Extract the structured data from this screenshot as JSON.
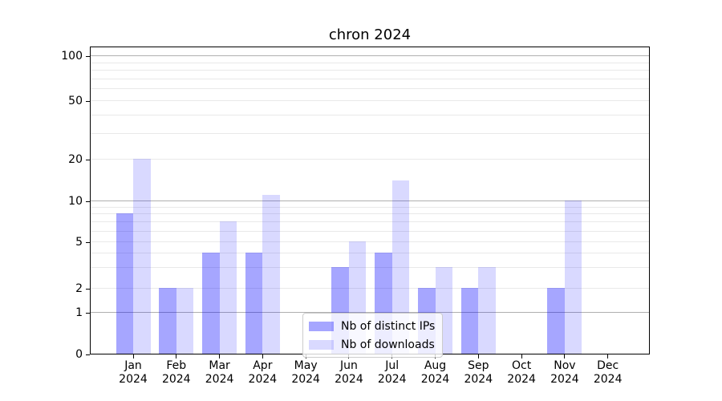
{
  "chart_data": {
    "type": "bar",
    "title": "chron 2024",
    "x_axis": {
      "months": [
        "Jan",
        "Feb",
        "Mar",
        "Apr",
        "May",
        "Jun",
        "Jul",
        "Aug",
        "Sep",
        "Oct",
        "Nov",
        "Dec"
      ],
      "year_label": "2024"
    },
    "y_axis": {
      "scale": "symlog",
      "tick_labels": [
        "0",
        "1",
        "2",
        "5",
        "10",
        "20",
        "50",
        "100"
      ],
      "tick_values": [
        0,
        1,
        2,
        5,
        10,
        20,
        50,
        100
      ],
      "ylim": [
        0,
        115
      ],
      "major_grid_values": [
        1,
        10,
        100
      ],
      "minor_grid_values": [
        2,
        3,
        4,
        5,
        6,
        7,
        8,
        9,
        20,
        30,
        40,
        50,
        60,
        70,
        80,
        90
      ]
    },
    "series": [
      {
        "name": "Nb of distinct IPs",
        "color": "rgba(0,0,255,0.35)",
        "color_hex": "#a6a6ff",
        "values": [
          8,
          2,
          4,
          4,
          0,
          3,
          4,
          2,
          2,
          0,
          2,
          0
        ]
      },
      {
        "name": "Nb of downloads",
        "color": "rgba(0,0,255,0.15)",
        "color_hex": "#d9d9ff",
        "values": [
          20,
          2,
          7,
          11,
          0,
          5,
          14,
          3,
          3,
          0,
          10,
          0
        ]
      }
    ],
    "legend_position": "lower-center",
    "grid": "horizontal",
    "colors": {
      "major_grid": "#b0b0b0",
      "minor_grid": "#e9e9e9",
      "spine": "#000000",
      "background": "#ffffff"
    }
  }
}
